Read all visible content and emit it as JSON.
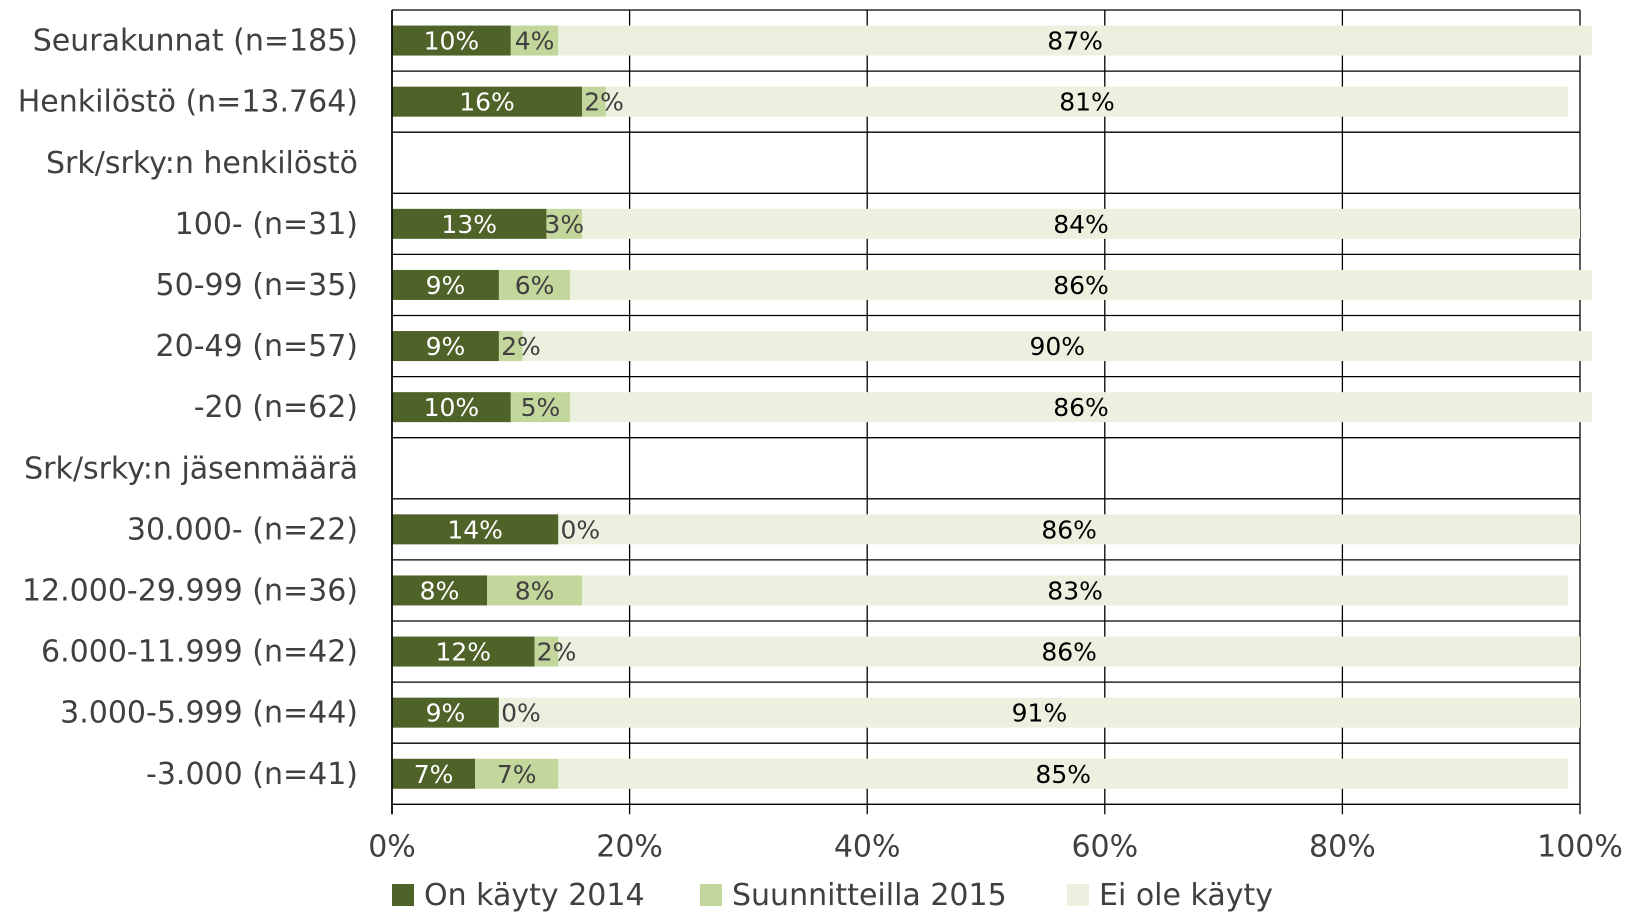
{
  "chart_data": {
    "type": "bar",
    "orientation": "horizontal",
    "stacked": true,
    "categories": [
      "Seurakunnat (n=185)",
      "Henkilöstö (n=13.764)",
      "Srk/srky:n henkilöstö",
      "100- (n=31)",
      "50-99 (n=35)",
      "20-49 (n=57)",
      "-20 (n=62)",
      "Srk/srky:n jäsenmäärä",
      "30.000- (n=22)",
      "12.000-29.999 (n=36)",
      "6.000-11.999 (n=42)",
      "3.000-5.999 (n=44)",
      "-3.000 (n=41)"
    ],
    "series": [
      {
        "name": "On käyty 2014",
        "color": "#4f6228",
        "label_color": "#ffffff",
        "values": [
          10,
          16,
          null,
          13,
          9,
          9,
          10,
          null,
          14,
          8,
          12,
          9,
          7
        ],
        "labels": [
          "10%",
          "16%",
          "",
          "13%",
          "9%",
          "9%",
          "10%",
          "",
          "14%",
          "8%",
          "12%",
          "9%",
          "7%"
        ]
      },
      {
        "name": "Suunnitteilla 2015",
        "color": "#c3d69b",
        "label_color": "#404040",
        "values": [
          4,
          2,
          null,
          3,
          6,
          2,
          5,
          null,
          0,
          8,
          2,
          0,
          7
        ],
        "labels": [
          "4%",
          "2%",
          "",
          "3%",
          "6%",
          "2%",
          "5%",
          "",
          "0%",
          "8%",
          "2%",
          "0%",
          "7%"
        ]
      },
      {
        "name": "Ei ole käyty",
        "color": "#ebf1de",
        "label_color": "#000000",
        "values": [
          87,
          81,
          null,
          84,
          86,
          90,
          86,
          null,
          86,
          83,
          86,
          91,
          85
        ],
        "labels": [
          "87%",
          "81%",
          "",
          "84%",
          "86%",
          "90%",
          "86%",
          "",
          "86%",
          "83%",
          "86%",
          "91%",
          "85%"
        ]
      }
    ],
    "xlim": [
      0,
      100
    ],
    "xticks": [
      "0%",
      "20%",
      "40%",
      "60%",
      "80%",
      "100%"
    ],
    "grid": true,
    "legend_position": "bottom",
    "title": "",
    "xlabel": "",
    "ylabel": ""
  }
}
